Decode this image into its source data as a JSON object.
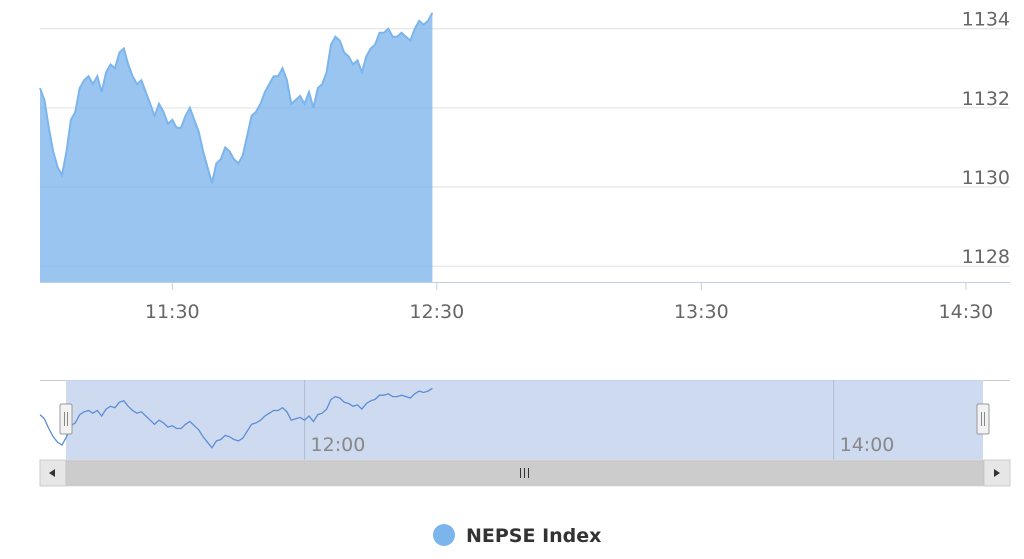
{
  "chart_data": {
    "type": "area",
    "series": [
      {
        "name": "NEPSE Index",
        "color": "#7cb5ec",
        "points": [
          [
            "11:00",
            1132.5
          ],
          [
            "11:01",
            1132.2
          ],
          [
            "11:02",
            1131.5
          ],
          [
            "11:03",
            1130.9
          ],
          [
            "11:04",
            1130.5
          ],
          [
            "11:05",
            1130.3
          ],
          [
            "11:06",
            1130.9
          ],
          [
            "11:07",
            1131.7
          ],
          [
            "11:08",
            1131.9
          ],
          [
            "11:09",
            1132.5
          ],
          [
            "11:10",
            1132.7
          ],
          [
            "11:11",
            1132.8
          ],
          [
            "11:12",
            1132.6
          ],
          [
            "11:13",
            1132.8
          ],
          [
            "11:14",
            1132.4
          ],
          [
            "11:15",
            1132.9
          ],
          [
            "11:16",
            1133.1
          ],
          [
            "11:17",
            1133.0
          ],
          [
            "11:18",
            1133.4
          ],
          [
            "11:19",
            1133.5
          ],
          [
            "11:20",
            1133.1
          ],
          [
            "11:21",
            1132.8
          ],
          [
            "11:22",
            1132.6
          ],
          [
            "11:23",
            1132.7
          ],
          [
            "11:24",
            1132.4
          ],
          [
            "11:25",
            1132.1
          ],
          [
            "11:26",
            1131.8
          ],
          [
            "11:27",
            1132.1
          ],
          [
            "11:28",
            1131.9
          ],
          [
            "11:29",
            1131.6
          ],
          [
            "11:30",
            1131.7
          ],
          [
            "11:31",
            1131.5
          ],
          [
            "11:32",
            1131.5
          ],
          [
            "11:33",
            1131.8
          ],
          [
            "11:34",
            1132.0
          ],
          [
            "11:35",
            1131.7
          ],
          [
            "11:36",
            1131.4
          ],
          [
            "11:37",
            1130.9
          ],
          [
            "11:38",
            1130.5
          ],
          [
            "11:39",
            1130.1
          ],
          [
            "11:40",
            1130.6
          ],
          [
            "11:41",
            1130.7
          ],
          [
            "11:42",
            1131.0
          ],
          [
            "11:43",
            1130.9
          ],
          [
            "11:44",
            1130.7
          ],
          [
            "11:45",
            1130.6
          ],
          [
            "11:46",
            1130.8
          ],
          [
            "11:47",
            1131.3
          ],
          [
            "11:48",
            1131.8
          ],
          [
            "11:49",
            1131.9
          ],
          [
            "11:50",
            1132.1
          ],
          [
            "11:51",
            1132.4
          ],
          [
            "11:52",
            1132.6
          ],
          [
            "11:53",
            1132.8
          ],
          [
            "11:54",
            1132.8
          ],
          [
            "11:55",
            1133.0
          ],
          [
            "11:56",
            1132.7
          ],
          [
            "11:57",
            1132.1
          ],
          [
            "11:58",
            1132.2
          ],
          [
            "11:59",
            1132.3
          ],
          [
            "12:00",
            1132.1
          ],
          [
            "12:01",
            1132.4
          ],
          [
            "12:02",
            1132.0
          ],
          [
            "12:03",
            1132.5
          ],
          [
            "12:04",
            1132.6
          ],
          [
            "12:05",
            1132.9
          ],
          [
            "12:06",
            1133.6
          ],
          [
            "12:07",
            1133.8
          ],
          [
            "12:08",
            1133.7
          ],
          [
            "12:09",
            1133.4
          ],
          [
            "12:10",
            1133.3
          ],
          [
            "12:11",
            1133.1
          ],
          [
            "12:12",
            1133.2
          ],
          [
            "12:13",
            1132.9
          ],
          [
            "12:14",
            1133.3
          ],
          [
            "12:15",
            1133.5
          ],
          [
            "12:16",
            1133.6
          ],
          [
            "12:17",
            1133.9
          ],
          [
            "12:18",
            1133.9
          ],
          [
            "12:19",
            1134.0
          ],
          [
            "12:20",
            1133.8
          ],
          [
            "12:21",
            1133.8
          ],
          [
            "12:22",
            1133.9
          ],
          [
            "12:23",
            1133.8
          ],
          [
            "12:24",
            1133.7
          ],
          [
            "12:25",
            1134.0
          ],
          [
            "12:26",
            1134.2
          ],
          [
            "12:27",
            1134.1
          ],
          [
            "12:28",
            1134.2
          ],
          [
            "12:29",
            1134.4
          ]
        ]
      }
    ],
    "y_axis": {
      "ticks": [
        1128,
        1130,
        1132,
        1134
      ],
      "range": [
        1127.6,
        1134.6
      ],
      "labels_position": "right"
    },
    "x_axis": {
      "ticks": [
        "11:30",
        "12:30",
        "13:30",
        "14:30"
      ],
      "range": [
        "11:00",
        "14:40"
      ]
    },
    "navigator": {
      "labels": [
        "12:00",
        "14:00"
      ]
    },
    "grid": true,
    "legend": {
      "position": "bottom-center"
    }
  }
}
